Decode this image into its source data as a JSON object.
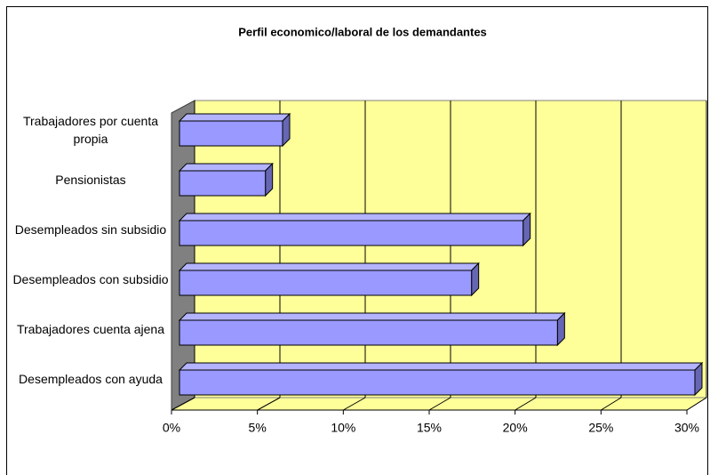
{
  "chart_data": {
    "type": "bar",
    "orientation": "horizontal",
    "title": "Perfil economico/laboral de los demandantes",
    "categories": [
      "Trabajadores por cuenta propia",
      "Pensionistas",
      "Desempleados sin subsidio",
      "Desempleados con subsidio",
      "Trabajadores cuenta ajena",
      "Desempleados con ayuda"
    ],
    "values": [
      6,
      5,
      20,
      17,
      22,
      30
    ],
    "color": "#9999ff",
    "xlim": [
      0,
      30
    ],
    "xticks": [
      {
        "value": 0,
        "label": "0%"
      },
      {
        "value": 5,
        "label": "5%"
      },
      {
        "value": 10,
        "label": "10%"
      },
      {
        "value": 15,
        "label": "15%"
      },
      {
        "value": 20,
        "label": "20%"
      },
      {
        "value": 25,
        "label": "25%"
      },
      {
        "value": 30,
        "label": "30%"
      }
    ],
    "grid": true
  }
}
